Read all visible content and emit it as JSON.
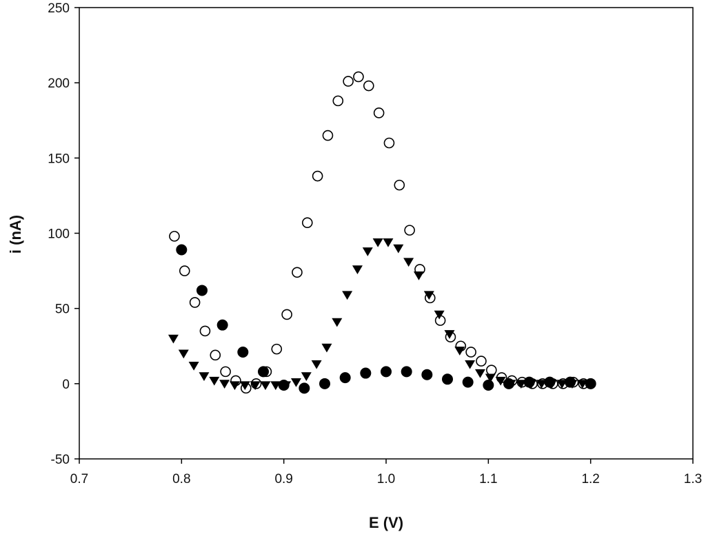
{
  "chart_data": {
    "type": "scatter",
    "title": "",
    "xlabel": "E (V)",
    "ylabel": "i (nA)",
    "xlim": [
      0.7,
      1.3
    ],
    "ylim": [
      -50,
      250
    ],
    "xticks": [
      "0.7",
      "0.8",
      "0.9",
      "1.0",
      "1.1",
      "1.2",
      "1.3"
    ],
    "yticks": [
      "-50",
      "0",
      "50",
      "100",
      "150",
      "200",
      "250"
    ],
    "grid": false,
    "legend": "none",
    "series": [
      {
        "marker": "open-circle",
        "color": "#000000",
        "points": [
          [
            0.793,
            98
          ],
          [
            0.803,
            75
          ],
          [
            0.813,
            54
          ],
          [
            0.823,
            35
          ],
          [
            0.833,
            19
          ],
          [
            0.843,
            8
          ],
          [
            0.853,
            2
          ],
          [
            0.863,
            -3
          ],
          [
            0.873,
            0
          ],
          [
            0.883,
            8
          ],
          [
            0.893,
            23
          ],
          [
            0.903,
            46
          ],
          [
            0.913,
            74
          ],
          [
            0.923,
            107
          ],
          [
            0.933,
            138
          ],
          [
            0.943,
            165
          ],
          [
            0.953,
            188
          ],
          [
            0.963,
            201
          ],
          [
            0.973,
            204
          ],
          [
            0.983,
            198
          ],
          [
            0.993,
            180
          ],
          [
            1.003,
            160
          ],
          [
            1.013,
            132
          ],
          [
            1.023,
            102
          ],
          [
            1.033,
            76
          ],
          [
            1.043,
            57
          ],
          [
            1.053,
            42
          ],
          [
            1.063,
            31
          ],
          [
            1.073,
            25
          ],
          [
            1.083,
            21
          ],
          [
            1.093,
            15
          ],
          [
            1.103,
            9
          ],
          [
            1.113,
            4
          ],
          [
            1.123,
            2
          ],
          [
            1.133,
            1
          ],
          [
            1.143,
            0
          ],
          [
            1.153,
            0
          ],
          [
            1.163,
            0
          ],
          [
            1.173,
            0
          ],
          [
            1.183,
            1
          ],
          [
            1.193,
            0
          ],
          [
            1.2,
            0
          ]
        ]
      },
      {
        "marker": "filled-circle",
        "color": "#000000",
        "points": [
          [
            0.8,
            89
          ],
          [
            0.82,
            62
          ],
          [
            0.84,
            39
          ],
          [
            0.86,
            21
          ],
          [
            0.88,
            8
          ],
          [
            0.9,
            -1
          ],
          [
            0.92,
            -3
          ],
          [
            0.94,
            0
          ],
          [
            0.96,
            4
          ],
          [
            0.98,
            7
          ],
          [
            1.0,
            8
          ],
          [
            1.02,
            8
          ],
          [
            1.04,
            6
          ],
          [
            1.06,
            3
          ],
          [
            1.08,
            1
          ],
          [
            1.1,
            -1
          ],
          [
            1.12,
            0
          ],
          [
            1.14,
            1
          ],
          [
            1.16,
            1
          ],
          [
            1.18,
            1
          ],
          [
            1.2,
            0
          ]
        ]
      },
      {
        "marker": "filled-triangle-down",
        "color": "#000000",
        "points": [
          [
            0.792,
            30
          ],
          [
            0.802,
            20
          ],
          [
            0.812,
            12
          ],
          [
            0.822,
            5
          ],
          [
            0.832,
            2
          ],
          [
            0.842,
            0
          ],
          [
            0.852,
            -1
          ],
          [
            0.862,
            -1
          ],
          [
            0.872,
            -1
          ],
          [
            0.882,
            -1
          ],
          [
            0.892,
            -1
          ],
          [
            0.902,
            -1
          ],
          [
            0.912,
            1
          ],
          [
            0.922,
            5
          ],
          [
            0.932,
            13
          ],
          [
            0.942,
            24
          ],
          [
            0.952,
            41
          ],
          [
            0.962,
            59
          ],
          [
            0.972,
            76
          ],
          [
            0.982,
            88
          ],
          [
            0.992,
            94
          ],
          [
            1.002,
            94
          ],
          [
            1.012,
            90
          ],
          [
            1.022,
            81
          ],
          [
            1.032,
            72
          ],
          [
            1.042,
            59
          ],
          [
            1.052,
            46
          ],
          [
            1.062,
            33
          ],
          [
            1.072,
            22
          ],
          [
            1.082,
            13
          ],
          [
            1.092,
            7
          ],
          [
            1.102,
            4
          ],
          [
            1.112,
            2
          ],
          [
            1.122,
            0
          ],
          [
            1.132,
            0
          ],
          [
            1.142,
            0
          ],
          [
            1.152,
            0
          ],
          [
            1.162,
            0
          ],
          [
            1.172,
            0
          ],
          [
            1.182,
            0
          ],
          [
            1.192,
            0
          ]
        ]
      }
    ]
  }
}
